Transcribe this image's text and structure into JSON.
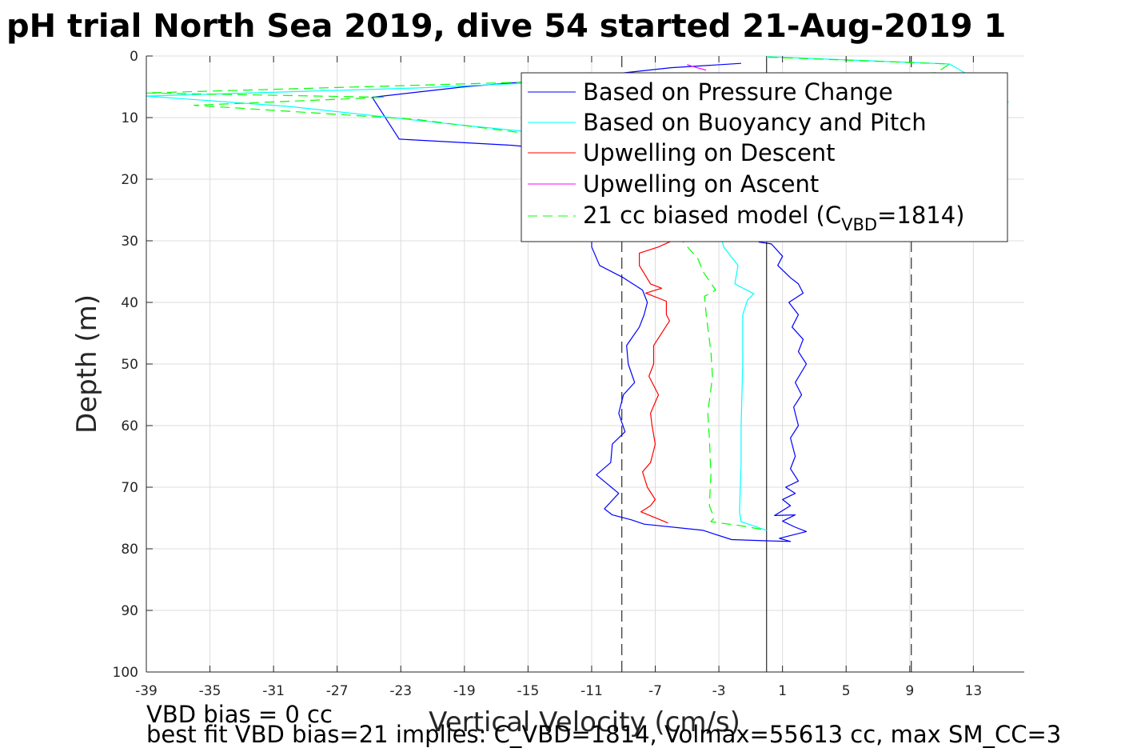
{
  "chart_data": {
    "type": "line",
    "title": "pH trial North Sea 2019, dive 54 started 21-Aug-2019 1",
    "xlabel": "Vertical Velocity (cm/s)",
    "ylabel": "Depth (m)",
    "xlim": [
      -39,
      16.2
    ],
    "ylim": [
      0,
      100
    ],
    "y_reversed": true,
    "grid": true,
    "x_ticks": [
      -39,
      -35,
      -31,
      -27,
      -23,
      -19,
      -15,
      -11,
      -7,
      -3,
      1,
      5,
      9,
      13
    ],
    "y_ticks": [
      0,
      10,
      20,
      30,
      40,
      50,
      60,
      70,
      80,
      90,
      100
    ],
    "vertical_lines": [
      {
        "x": -9.1,
        "style": "dashed",
        "color": "#000000"
      },
      {
        "x": 0.0,
        "style": "solid",
        "color": "#000000"
      },
      {
        "x": 9.1,
        "style": "dashed",
        "color": "#000000"
      }
    ],
    "legend": {
      "placement": "top-right",
      "entries": [
        {
          "label": "Based on Pressure Change",
          "color": "#0000ff",
          "style": "solid"
        },
        {
          "label": "Based on Buoyancy and Pitch",
          "color": "#00ffff",
          "style": "solid"
        },
        {
          "label": "Upwelling on Descent",
          "color": "#ff0000",
          "style": "solid"
        },
        {
          "label": "Upwelling on Ascent",
          "color": "#ff00ff",
          "style": "solid"
        },
        {
          "label": "21 cc biased model (C",
          "label_sub": "VBD",
          "label_end": "=1814)",
          "color": "#00ff00",
          "style": "dashed"
        }
      ]
    },
    "series": [
      {
        "name": "Based on Pressure Change",
        "color": "#0000ff",
        "style": "solid",
        "points": [
          [
            -1.6,
            1.2
          ],
          [
            -6,
            1.9
          ],
          [
            -11,
            3.3
          ],
          [
            -19,
            5
          ],
          [
            -24.8,
            6.7
          ],
          [
            -23.1,
            13.5
          ],
          [
            -16,
            14.5
          ],
          [
            -12,
            15.5
          ],
          [
            -11,
            28
          ],
          [
            -11,
            31
          ],
          [
            -10.5,
            34
          ],
          [
            -9,
            36
          ],
          [
            -7.8,
            38
          ],
          [
            -7.5,
            40
          ],
          [
            -7.7,
            42
          ],
          [
            -8,
            44
          ],
          [
            -8.8,
            47
          ],
          [
            -8.7,
            50
          ],
          [
            -8.3,
            53
          ],
          [
            -9,
            55
          ],
          [
            -9.3,
            58
          ],
          [
            -8.9,
            61
          ],
          [
            -9.7,
            63
          ],
          [
            -9.8,
            66
          ],
          [
            -10.7,
            68
          ],
          [
            -9.3,
            71
          ],
          [
            -10.2,
            73.5
          ],
          [
            -9.7,
            74.5
          ],
          [
            -8.5,
            75.3
          ],
          [
            -7.7,
            76
          ],
          [
            -4,
            77
          ],
          [
            -2.2,
            78.5
          ],
          [
            0,
            78.7
          ],
          [
            1.5,
            78.8
          ],
          [
            0.8,
            78.3
          ],
          [
            2.5,
            77.2
          ],
          [
            1.8,
            76.5
          ],
          [
            1,
            75.5
          ],
          [
            1.8,
            74.5
          ],
          [
            0.5,
            74.6
          ],
          [
            1.5,
            73
          ],
          [
            1,
            72
          ],
          [
            1.8,
            71
          ],
          [
            1.2,
            70
          ],
          [
            2,
            69
          ],
          [
            1.5,
            67
          ],
          [
            1.8,
            65
          ],
          [
            1.5,
            62
          ],
          [
            2,
            60
          ],
          [
            1.7,
            57
          ],
          [
            2.2,
            55
          ],
          [
            1.8,
            53
          ],
          [
            2.5,
            50
          ],
          [
            2,
            48
          ],
          [
            2.3,
            46
          ],
          [
            1.6,
            44
          ],
          [
            2,
            42
          ],
          [
            1.4,
            40
          ],
          [
            2.3,
            38.5
          ],
          [
            2,
            37
          ],
          [
            1.5,
            36
          ],
          [
            0.7,
            34
          ],
          [
            1,
            32.5
          ],
          [
            0.3,
            30.5
          ],
          [
            -0.5,
            30.2
          ]
        ]
      },
      {
        "name": "Based on Buoyancy and Pitch",
        "color": "#00ffff",
        "style": "solid",
        "points": [
          [
            0,
            0.1
          ],
          [
            11.5,
            1.3
          ],
          [
            14,
            5
          ],
          [
            15.2,
            7.5
          ],
          [
            14,
            6.6
          ],
          [
            2,
            4.5
          ],
          [
            -2,
            3.3
          ],
          [
            -8,
            3.6
          ],
          [
            -22,
            5.2
          ],
          [
            -39,
            6.5
          ],
          [
            -30,
            8.2
          ],
          [
            -20,
            11
          ],
          [
            -15,
            12.3
          ],
          [
            -10,
            16
          ],
          [
            -5,
            22
          ],
          [
            -3,
            28
          ],
          [
            -2.7,
            31
          ],
          [
            -1.8,
            34
          ],
          [
            -2,
            37
          ],
          [
            -0.8,
            38.6
          ],
          [
            -1.2,
            39.6
          ],
          [
            -1.5,
            42
          ],
          [
            -1.5,
            50
          ],
          [
            -1.6,
            60
          ],
          [
            -1.6,
            66
          ],
          [
            -1.7,
            74
          ],
          [
            -1.6,
            75.6
          ],
          [
            0,
            77
          ]
        ]
      },
      {
        "name": "Upwelling on Descent",
        "color": "#ff0000",
        "style": "solid",
        "points": [
          [
            -5.6,
            29.6
          ],
          [
            -6.8,
            31
          ],
          [
            -8,
            32
          ],
          [
            -8,
            34
          ],
          [
            -7.3,
            37
          ],
          [
            -6.6,
            37.7
          ],
          [
            -7.6,
            38.5
          ],
          [
            -6.3,
            39.8
          ],
          [
            -6.3,
            42
          ],
          [
            -6.1,
            43
          ],
          [
            -7.1,
            47
          ],
          [
            -7.1,
            50
          ],
          [
            -7.4,
            52
          ],
          [
            -6.8,
            55
          ],
          [
            -7.3,
            58
          ],
          [
            -7.2,
            60
          ],
          [
            -7,
            63
          ],
          [
            -7.3,
            66
          ],
          [
            -7.8,
            67.5
          ],
          [
            -7.5,
            70
          ],
          [
            -7,
            72
          ],
          [
            -7.3,
            73
          ],
          [
            -7.9,
            74
          ],
          [
            -6.2,
            75.8
          ]
        ]
      },
      {
        "name": "Upwelling on Ascent",
        "color": "#ff00ff",
        "style": "solid",
        "points": [
          [
            -5,
            1.4
          ],
          [
            -4.5,
            1.8
          ],
          [
            -3.8,
            2.3
          ]
        ]
      },
      {
        "name": "21 cc biased model",
        "color": "#00ff00",
        "style": "dashed",
        "points": [
          [
            0.1,
            0.2
          ],
          [
            11.5,
            1.3
          ],
          [
            10.7,
            2.7
          ],
          [
            2,
            3.5
          ],
          [
            -8,
            3.7
          ],
          [
            -20,
            4.6
          ],
          [
            -39,
            6
          ],
          [
            -24,
            6.7
          ],
          [
            -36,
            8
          ],
          [
            -22,
            10.3
          ],
          [
            -15,
            12.6
          ],
          [
            -10,
            16
          ],
          [
            -7,
            22
          ],
          [
            -6,
            28
          ],
          [
            -5.3,
            30
          ],
          [
            -4.3,
            33
          ],
          [
            -4,
            35
          ],
          [
            -3.2,
            38
          ],
          [
            -3.9,
            39
          ],
          [
            -3.8,
            42
          ],
          [
            -3.5,
            48
          ],
          [
            -3.4,
            52
          ],
          [
            -3.7,
            58
          ],
          [
            -3.6,
            62
          ],
          [
            -3.5,
            68
          ],
          [
            -3.6,
            73
          ],
          [
            -3.3,
            75
          ],
          [
            -3.5,
            75.6
          ],
          [
            -1.5,
            76.3
          ],
          [
            0,
            77
          ]
        ]
      }
    ]
  },
  "footer": {
    "line1": "VBD bias = 0 cc",
    "line2": "best fit VBD bias=21 implies: C_VBD=1814, Volmax=55613 cc, max SM_CC=3"
  }
}
